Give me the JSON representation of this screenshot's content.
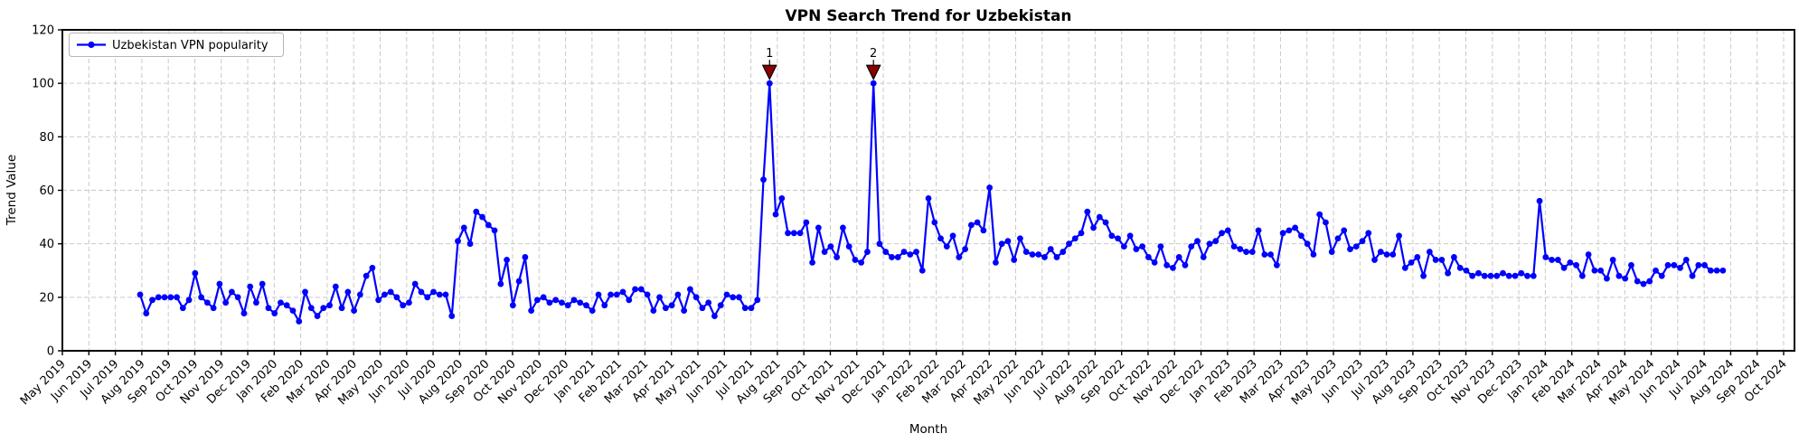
{
  "title": "VPN Search Trend for Uzbekistan",
  "xlabel": "Month",
  "ylabel": "Trend Value",
  "legend": {
    "label": "Uzbekistan VPN popularity",
    "position": "upper left"
  },
  "colors": {
    "series": "#0000ff",
    "annotation": "#8b0000",
    "annotation_edge": "#000000",
    "grid": "#c9c9c9",
    "spine": "#000000",
    "legend_border": "#b5b5b5",
    "background": "#ffffff"
  },
  "chart_data": {
    "type": "line",
    "title": "VPN Search Trend for Uzbekistan",
    "xlabel": "Month",
    "ylabel": "Trend Value",
    "ylim": [
      0,
      120
    ],
    "y_ticks": [
      0,
      20,
      40,
      60,
      80,
      100,
      120
    ],
    "grid": true,
    "legend_position": "upper left",
    "x_tick_labels": [
      "May 2019",
      "Jun 2019",
      "Jul 2019",
      "Aug 2019",
      "Sep 2019",
      "Oct 2019",
      "Nov 2019",
      "Dec 2019",
      "Jan 2020",
      "Feb 2020",
      "Mar 2020",
      "Apr 2020",
      "May 2020",
      "Jun 2020",
      "Jul 2020",
      "Aug 2020",
      "Sep 2020",
      "Oct 2020",
      "Nov 2020",
      "Dec 2020",
      "Jan 2021",
      "Feb 2021",
      "Mar 2021",
      "Apr 2021",
      "May 2021",
      "Jun 2021",
      "Jul 2021",
      "Aug 2021",
      "Sep 2021",
      "Oct 2021",
      "Nov 2021",
      "Dec 2021",
      "Jan 2022",
      "Feb 2022",
      "Mar 2022",
      "Apr 2022",
      "May 2022",
      "Jun 2022",
      "Jul 2022",
      "Aug 2022",
      "Sep 2022",
      "Oct 2022",
      "Nov 2022",
      "Dec 2022",
      "Jan 2023",
      "Feb 2023",
      "Mar 2023",
      "Apr 2023",
      "May 2023",
      "Jun 2023",
      "Jul 2023",
      "Aug 2023",
      "Sep 2023",
      "Oct 2023",
      "Nov 2023",
      "Dec 2023",
      "Jan 2024",
      "Feb 2024",
      "Mar 2024",
      "Apr 2024",
      "May 2024",
      "Jun 2024",
      "Jul 2024",
      "Aug 2024",
      "Sep 2024",
      "Oct 2024"
    ],
    "series": [
      {
        "name": "Uzbekistan VPN popularity",
        "cadence": "weekly",
        "start_month": "Jul 2019",
        "end_month": "Jul 2024",
        "color": "#0000ff",
        "values": [
          21,
          14,
          19,
          20,
          20,
          20,
          20,
          16,
          19,
          29,
          20,
          18,
          16,
          25,
          18,
          22,
          20,
          14,
          24,
          18,
          25,
          16,
          14,
          18,
          17,
          15,
          11,
          22,
          16,
          13,
          16,
          17,
          24,
          16,
          22,
          15,
          21,
          28,
          31,
          19,
          21,
          22,
          20,
          17,
          18,
          25,
          22,
          20,
          22,
          21,
          21,
          13,
          41,
          46,
          40,
          52,
          50,
          47,
          45,
          25,
          34,
          17,
          26,
          35,
          15,
          19,
          20,
          18,
          19,
          18,
          17,
          19,
          18,
          17,
          15,
          21,
          17,
          21,
          21,
          22,
          19,
          23,
          23,
          21,
          15,
          20,
          16,
          17,
          21,
          15,
          23,
          20,
          16,
          18,
          13,
          17,
          21,
          20,
          20,
          16,
          16,
          19,
          64,
          100,
          51,
          57,
          44,
          44,
          44,
          48,
          33,
          46,
          37,
          39,
          35,
          46,
          39,
          34,
          33,
          37,
          100,
          40,
          37,
          35,
          35,
          37,
          36,
          37,
          30,
          57,
          48,
          42,
          39,
          43,
          35,
          38,
          47,
          48,
          45,
          61,
          33,
          40,
          41,
          34,
          42,
          37,
          36,
          36,
          35,
          38,
          35,
          37,
          40,
          42,
          44,
          52,
          46,
          50,
          48,
          43,
          42,
          39,
          43,
          38,
          39,
          35,
          33,
          39,
          32,
          31,
          35,
          32,
          39,
          41,
          35,
          40,
          41,
          44,
          45,
          39,
          38,
          37,
          37,
          45,
          36,
          36,
          32,
          44,
          45,
          46,
          43,
          40,
          36,
          51,
          48,
          37,
          42,
          45,
          38,
          39,
          41,
          44,
          34,
          37,
          36,
          36,
          43,
          31,
          33,
          35,
          28,
          37,
          34,
          34,
          29,
          35,
          31,
          30,
          28,
          29,
          28,
          28,
          28,
          29,
          28,
          28,
          29,
          28,
          28,
          56,
          35,
          34,
          34,
          31,
          33,
          32,
          28,
          36,
          30,
          30,
          27,
          34,
          28,
          27,
          32,
          26,
          25,
          26,
          30,
          28,
          32,
          32,
          31,
          34,
          28,
          32,
          32,
          30,
          30,
          30
        ]
      }
    ],
    "annotations": [
      {
        "label": "1",
        "point_index": 103,
        "value": 100,
        "month": "Jul 2021",
        "color": "#8b0000"
      },
      {
        "label": "2",
        "point_index": 120,
        "value": 100,
        "month": "Nov 2021",
        "color": "#8b0000"
      }
    ]
  }
}
